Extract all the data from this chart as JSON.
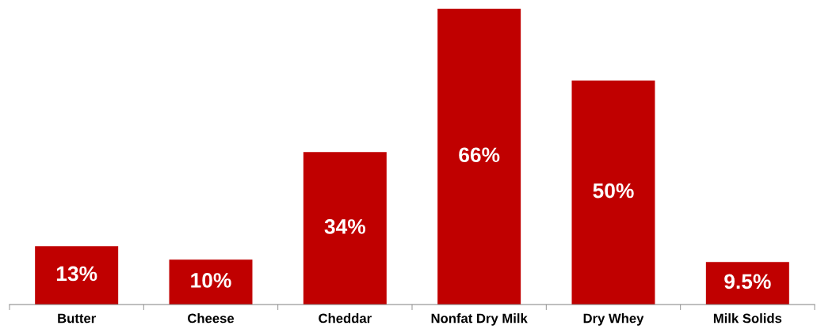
{
  "chart_data": {
    "type": "bar",
    "categories": [
      "Butter",
      "Cheese",
      "Cheddar",
      "Nonfat Dry Milk",
      "Dry Whey",
      "Milk Solids"
    ],
    "values": [
      13,
      10,
      34,
      66,
      50,
      9.5
    ],
    "value_labels": [
      "13%",
      "10%",
      "34%",
      "66%",
      "50%",
      "9.5%"
    ],
    "color": "#c00000",
    "grid": false,
    "legend": false
  }
}
